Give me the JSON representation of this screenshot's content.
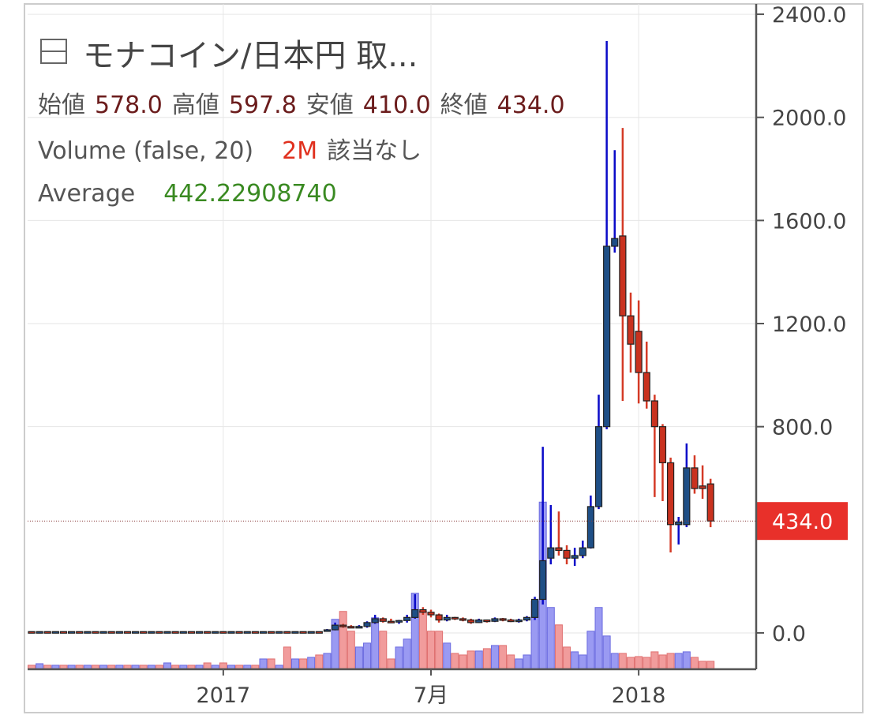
{
  "chart_data": {
    "type": "candlestick",
    "header": {
      "title": "モナコイン/日本円 取...",
      "open_label": "始値",
      "open_value": "578.0",
      "high_label": "高値",
      "high_value": "597.8",
      "low_label": "安値",
      "low_value": "410.0",
      "close_label": "終値",
      "close_value": "434.0",
      "volume_title": "Volume (false, 20)",
      "volume_value": "2M",
      "volume_note": "該当なし",
      "average_title": "Average",
      "average_value": "442.22908740"
    },
    "categories": [
      null,
      null,
      null,
      null,
      null,
      null,
      null,
      null,
      null,
      null,
      null,
      null,
      null,
      null,
      null,
      null,
      null,
      null,
      null,
      null,
      null,
      null,
      null,
      null,
      "2017",
      null,
      null,
      null,
      null,
      null,
      null,
      null,
      null,
      null,
      null,
      null,
      null,
      null,
      null,
      null,
      null,
      null,
      null,
      null,
      null,
      null,
      null,
      null,
      null,
      null,
      "7月",
      null,
      null,
      null,
      null,
      null,
      null,
      null,
      null,
      null,
      null,
      null,
      null,
      null,
      null,
      null,
      null,
      null,
      null,
      null,
      null,
      null,
      null,
      null,
      null,
      null,
      "2018",
      null,
      null,
      null,
      null,
      null,
      null,
      null,
      null,
      null
    ],
    "open": [
      5,
      4,
      5,
      4,
      5,
      4,
      5,
      4,
      5,
      4,
      5,
      4,
      5,
      4,
      5,
      4,
      5,
      4,
      5,
      4,
      5,
      4,
      5,
      4,
      5,
      4,
      5,
      4,
      5,
      4,
      5,
      4,
      5,
      4,
      5,
      4,
      5,
      8,
      12,
      30,
      25,
      22,
      25,
      40,
      55,
      45,
      42,
      48,
      60,
      90,
      80,
      70,
      50,
      60,
      55,
      50,
      40,
      50,
      45,
      55,
      50,
      48,
      50,
      60,
      130,
      290,
      330,
      320,
      290,
      300,
      330,
      490,
      800,
      1500,
      1540,
      1230,
      1170,
      1010,
      900,
      800,
      660,
      420,
      420,
      640,
      570,
      578
    ],
    "high": [
      6,
      6,
      6,
      6,
      6,
      6,
      6,
      6,
      6,
      6,
      6,
      6,
      6,
      6,
      6,
      6,
      6,
      6,
      6,
      6,
      6,
      6,
      6,
      6,
      6,
      6,
      6,
      6,
      6,
      6,
      6,
      6,
      6,
      6,
      6,
      6,
      6,
      15,
      40,
      35,
      30,
      30,
      45,
      70,
      60,
      55,
      50,
      70,
      150,
      100,
      90,
      75,
      70,
      62,
      60,
      55,
      55,
      52,
      60,
      58,
      55,
      55,
      65,
      140,
      722,
      496,
      471,
      340,
      330,
      358,
      533,
      924,
      2296,
      1873,
      1959,
      1320,
      1290,
      1130,
      924,
      810,
      680,
      450,
      735,
      689,
      650,
      597.8
    ],
    "low": [
      3,
      3,
      3,
      3,
      3,
      3,
      3,
      3,
      3,
      3,
      3,
      3,
      3,
      3,
      3,
      3,
      3,
      3,
      3,
      3,
      3,
      3,
      3,
      3,
      3,
      3,
      3,
      3,
      3,
      3,
      3,
      3,
      3,
      3,
      3,
      3,
      3,
      6,
      10,
      20,
      20,
      18,
      20,
      35,
      40,
      38,
      35,
      40,
      55,
      70,
      60,
      40,
      45,
      50,
      45,
      35,
      38,
      40,
      42,
      45,
      42,
      40,
      45,
      50,
      110,
      266,
      300,
      266,
      260,
      290,
      327,
      480,
      790,
      1475,
      900,
      1010,
      890,
      870,
      527,
      511,
      312,
      343,
      410,
      540,
      520,
      410
    ],
    "close": [
      4,
      5,
      4,
      5,
      4,
      5,
      4,
      5,
      4,
      5,
      4,
      5,
      4,
      5,
      4,
      5,
      4,
      5,
      4,
      5,
      4,
      5,
      4,
      5,
      4,
      5,
      4,
      5,
      4,
      5,
      4,
      5,
      4,
      5,
      4,
      5,
      4,
      12,
      30,
      25,
      22,
      25,
      40,
      55,
      45,
      42,
      48,
      60,
      90,
      80,
      70,
      50,
      60,
      55,
      50,
      40,
      50,
      45,
      55,
      50,
      48,
      50,
      60,
      130,
      280,
      330,
      320,
      290,
      300,
      330,
      490,
      800,
      1500,
      1530,
      1230,
      1120,
      1010,
      900,
      800,
      660,
      420,
      430,
      640,
      560,
      560,
      434
    ],
    "volume": [
      1,
      1.4,
      1,
      1,
      1,
      1,
      1,
      1,
      1,
      1,
      1,
      1,
      1,
      1,
      1,
      1,
      1,
      1.6,
      1,
      1,
      1,
      1,
      1.6,
      1,
      1.6,
      1,
      1,
      1,
      1,
      2.6,
      2.6,
      1,
      5.6,
      2.6,
      2.6,
      3,
      3.6,
      4,
      12.6,
      14.6,
      9.6,
      5.6,
      6.6,
      13,
      9.6,
      2.6,
      5.6,
      7.6,
      19.2,
      14.6,
      9.6,
      9.6,
      6.6,
      4,
      3.6,
      4.6,
      4.6,
      5.2,
      6,
      6,
      3.6,
      2.6,
      3.6,
      17.2,
      42.2,
      15.6,
      11.2,
      5.6,
      4.4,
      3.6,
      9.6,
      15.6,
      8.4,
      4,
      4,
      3,
      3.2,
      3,
      4.4,
      3.6,
      4,
      4,
      4.4,
      3,
      2,
      2
    ],
    "up_color": "#1f4f86",
    "up_wick_color": "#0a0ac8",
    "down_color": "#c9321f",
    "down_wick_color": "#d43a26",
    "volume_up_color": "#9a9af2",
    "volume_down_color": "#f19c9c",
    "ylim": [
      -141,
      2440
    ],
    "yticks": [
      {
        "value": 0,
        "label": "0.0"
      },
      {
        "value": 800,
        "label": "800.0"
      },
      {
        "value": 1200,
        "label": "1200.0"
      },
      {
        "value": 1600,
        "label": "1600.0"
      },
      {
        "value": 2000,
        "label": "2000.0"
      },
      {
        "value": 2400,
        "label": "2400.0"
      }
    ],
    "volume_ylim": [
      0,
      168
    ],
    "last_price": {
      "value": 434,
      "label": "434.0"
    },
    "grid": true
  }
}
